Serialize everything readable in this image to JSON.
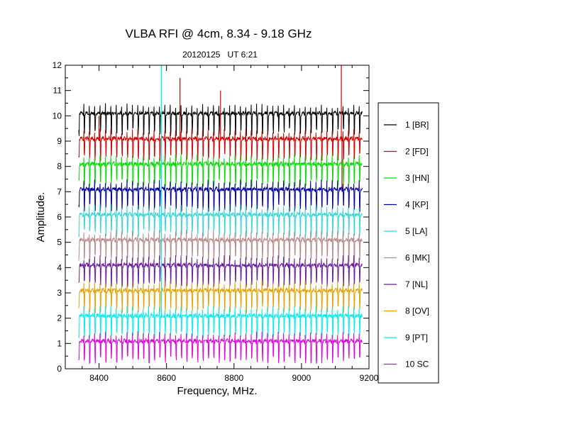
{
  "chart_data": {
    "type": "line",
    "title": "VLBA RFI @ 4cm, 8.34 - 9.18 GHz",
    "subtitle": "20120125   UT 6:21",
    "xlabel": "Frequency, MHz.",
    "ylabel": "Amplitude.",
    "xlim": [
      8300,
      9200
    ],
    "ylim": [
      0,
      12
    ],
    "x_ticks": [
      "8400",
      "8600",
      "8800",
      "9000",
      "9200"
    ],
    "y_ticks": [
      "0",
      "1",
      "2",
      "3",
      "4",
      "5",
      "6",
      "7",
      "8",
      "9",
      "10",
      "11",
      "12"
    ],
    "x_range": [
      8340,
      9180
    ],
    "grid": false,
    "legend_position": "right",
    "series": [
      {
        "name": "1 [BR]",
        "color": "#000000",
        "baseline": 10,
        "spikes": []
      },
      {
        "name": "2 [FD]",
        "color": "#d40000",
        "baseline": 9,
        "spikes": [
          {
            "x": 8400,
            "y": 10.0
          },
          {
            "x": 8640,
            "y": 11.5
          },
          {
            "x": 8760,
            "y": 11.0
          },
          {
            "x": 9118,
            "y": 12.0
          },
          {
            "x": 9120,
            "y": 7.0
          }
        ]
      },
      {
        "name": "3 [HN]",
        "color": "#00dd00",
        "baseline": 8,
        "spikes": []
      },
      {
        "name": "4 [KP]",
        "color": "#00009c",
        "baseline": 7,
        "spikes": []
      },
      {
        "name": "5 [LA]",
        "color": "#33d6d6",
        "baseline": 6,
        "spikes": [
          {
            "x": 8585,
            "y": 12.0
          }
        ]
      },
      {
        "name": "6 [MK]",
        "color": "#b88a8a",
        "baseline": 5,
        "spikes": []
      },
      {
        "name": "7 [NL]",
        "color": "#6a1aa0",
        "baseline": 4,
        "spikes": []
      },
      {
        "name": "8 [OV]",
        "color": "#e8a000",
        "baseline": 3,
        "spikes": []
      },
      {
        "name": "9 [PT]",
        "color": "#00eeee",
        "baseline": 2,
        "spikes": [
          {
            "x": 8585,
            "y": 12.0
          }
        ]
      },
      {
        "name": "10 SC",
        "color": "#e000e0",
        "baseline": 1,
        "spikes": []
      }
    ]
  }
}
